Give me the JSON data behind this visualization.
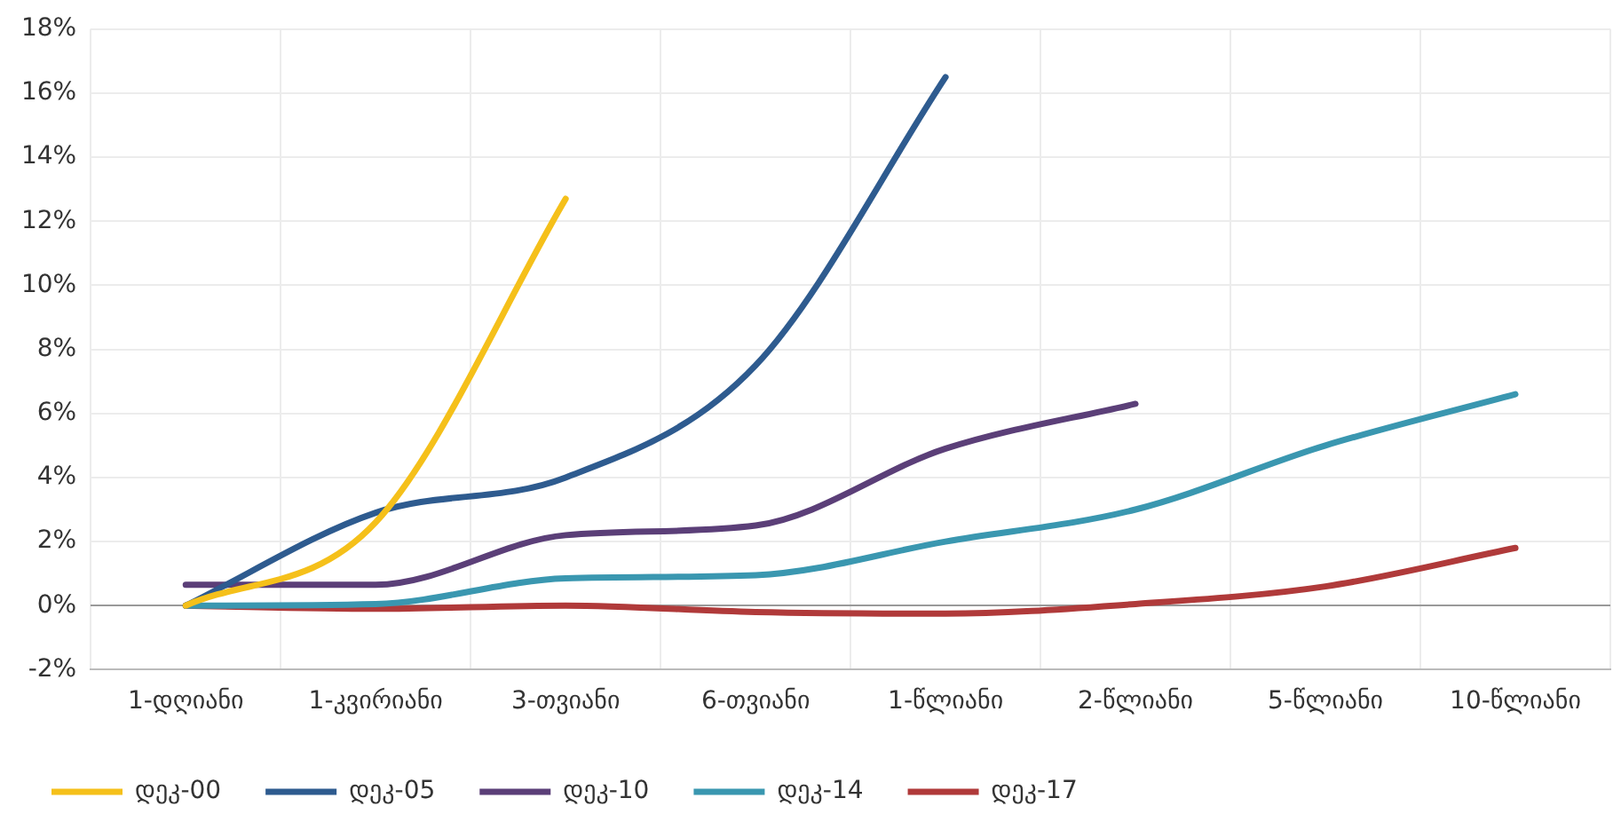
{
  "chart_data": {
    "type": "line",
    "categories": [
      "1-დღიანი",
      "1-კვირიანი",
      "3-თვიანი",
      "6-თვიანი",
      "1-წლიანი",
      "2-წლიანი",
      "5-წლიანი",
      "10-წლიანი"
    ],
    "series": [
      {
        "name": "დეკ-00",
        "color": "#f5c01a",
        "values": [
          0,
          2.6,
          12.7,
          null,
          null,
          null,
          null,
          null
        ]
      },
      {
        "name": "დეკ-05",
        "color": "#2e5b8f",
        "values": [
          0,
          2.9,
          4.0,
          7.5,
          16.5,
          null,
          null,
          null
        ]
      },
      {
        "name": "დეკ-10",
        "color": "#5b3f78",
        "values": [
          0.65,
          0.65,
          2.2,
          2.5,
          4.9,
          6.3,
          null,
          null
        ]
      },
      {
        "name": "დეკ-14",
        "color": "#3a97b0",
        "values": [
          0,
          0.05,
          0.85,
          0.95,
          2.0,
          3.0,
          5.0,
          6.6
        ]
      },
      {
        "name": "დეკ-17",
        "color": "#b03a3a",
        "values": [
          0,
          -0.1,
          0,
          -0.2,
          -0.25,
          0.05,
          0.6,
          1.8
        ]
      }
    ],
    "ylim": [
      -2,
      18
    ],
    "yticks": [
      {
        "value": -2,
        "label": "-2%"
      },
      {
        "value": 0,
        "label": "0%"
      },
      {
        "value": 2,
        "label": "2%"
      },
      {
        "value": 4,
        "label": "4%"
      },
      {
        "value": 6,
        "label": "6%"
      },
      {
        "value": 8,
        "label": "8%"
      },
      {
        "value": 10,
        "label": "10%"
      },
      {
        "value": 12,
        "label": "12%"
      },
      {
        "value": 14,
        "label": "14%"
      },
      {
        "value": 16,
        "label": "16%"
      },
      {
        "value": 18,
        "label": "18%"
      }
    ],
    "grid": true,
    "legend": "bottom left",
    "marker": "none",
    "line_style": "solid"
  }
}
